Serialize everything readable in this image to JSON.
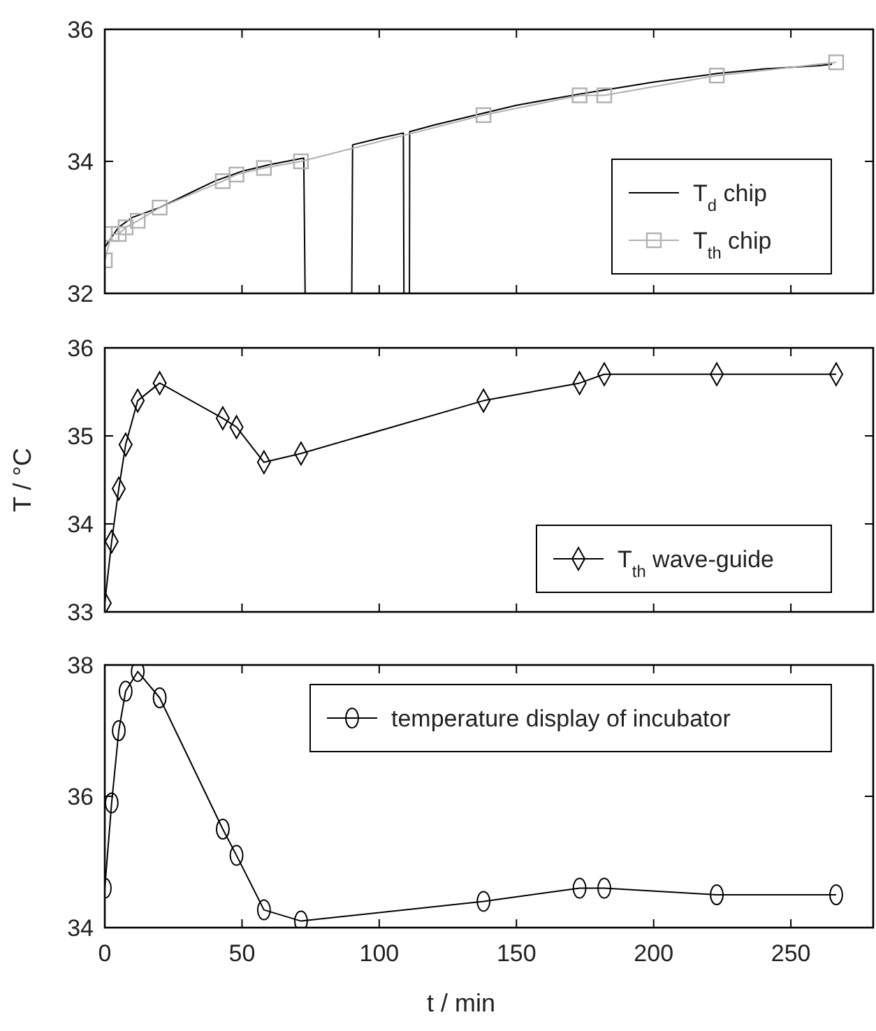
{
  "chart_data": [
    {
      "type": "line",
      "xlim": [
        0,
        280
      ],
      "xticks": [
        0,
        50,
        100,
        150,
        200,
        250
      ],
      "ylim": [
        32,
        36
      ],
      "yticks": [
        32,
        34,
        36
      ],
      "tick_labels": "y",
      "legend": "bottom right",
      "grid": false,
      "series": [
        {
          "name": "T$_{d}$ chip",
          "color": "#000000",
          "marker": "none",
          "x": [
            0,
            5,
            10,
            20,
            30,
            40,
            50,
            60,
            72.5,
            73,
            90,
            90.3,
            100,
            108.8,
            109,
            111,
            111.1,
            120,
            138,
            150,
            173,
            182,
            200,
            223,
            240,
            260,
            265
          ],
          "values": [
            32.7,
            33.0,
            33.15,
            33.3,
            33.5,
            33.7,
            33.85,
            33.95,
            34.05,
            32,
            32,
            34.25,
            34.35,
            34.43,
            32,
            32,
            34.45,
            34.55,
            34.73,
            34.85,
            35.02,
            35.08,
            35.2,
            35.33,
            35.4,
            35.45,
            35.47
          ]
        },
        {
          "name": "T$_{th}$ chip",
          "color": "#b0b0b0",
          "marker": "square",
          "x": [
            0,
            2.5,
            5.1,
            7.6,
            12,
            20,
            43,
            48,
            58,
            71.5,
            138,
            173,
            182,
            223,
            266.5
          ],
          "values": [
            32.5,
            32.9,
            32.9,
            33.0,
            33.1,
            33.3,
            33.7,
            33.8,
            33.9,
            34.0,
            34.7,
            35.0,
            35.0,
            35.3,
            35.5
          ]
        }
      ]
    },
    {
      "type": "line",
      "ylabel": "T / °C",
      "xlim": [
        0,
        280
      ],
      "xticks": [
        0,
        50,
        100,
        150,
        200,
        250
      ],
      "ylim": [
        33,
        36
      ],
      "yticks": [
        33,
        34,
        35,
        36
      ],
      "tick_labels": "y",
      "legend": "bottom right",
      "grid": false,
      "series": [
        {
          "name": "T$_{th}$ wave-guide",
          "color": "#000000",
          "marker": "diamond",
          "x": [
            0,
            2.5,
            5.1,
            7.6,
            12,
            20,
            43,
            48,
            58,
            71.5,
            138,
            173,
            182,
            223,
            266.5
          ],
          "values": [
            33.1,
            33.8,
            34.4,
            34.9,
            35.4,
            35.6,
            35.2,
            35.1,
            34.7,
            34.8,
            35.4,
            35.6,
            35.7,
            35.7,
            35.7
          ]
        }
      ]
    },
    {
      "type": "line",
      "xlabel": "t / min",
      "xlim": [
        0,
        280
      ],
      "xticks": [
        0,
        50,
        100,
        150,
        200,
        250
      ],
      "ylim": [
        34,
        38
      ],
      "yticks": [
        34,
        36,
        38
      ],
      "legend": "top right",
      "grid": false,
      "series": [
        {
          "name": "temperature display of incubator",
          "color": "#000000",
          "marker": "circle",
          "x": [
            0,
            2.5,
            5.1,
            7.6,
            12,
            20,
            43,
            48,
            58,
            71.5,
            138,
            173,
            182,
            223,
            266.5
          ],
          "values": [
            34.6,
            35.9,
            37.0,
            37.6,
            37.9,
            37.5,
            35.5,
            35.1,
            34.27,
            34.1,
            34.4,
            34.6,
            34.6,
            34.5,
            34.5
          ]
        }
      ]
    }
  ]
}
